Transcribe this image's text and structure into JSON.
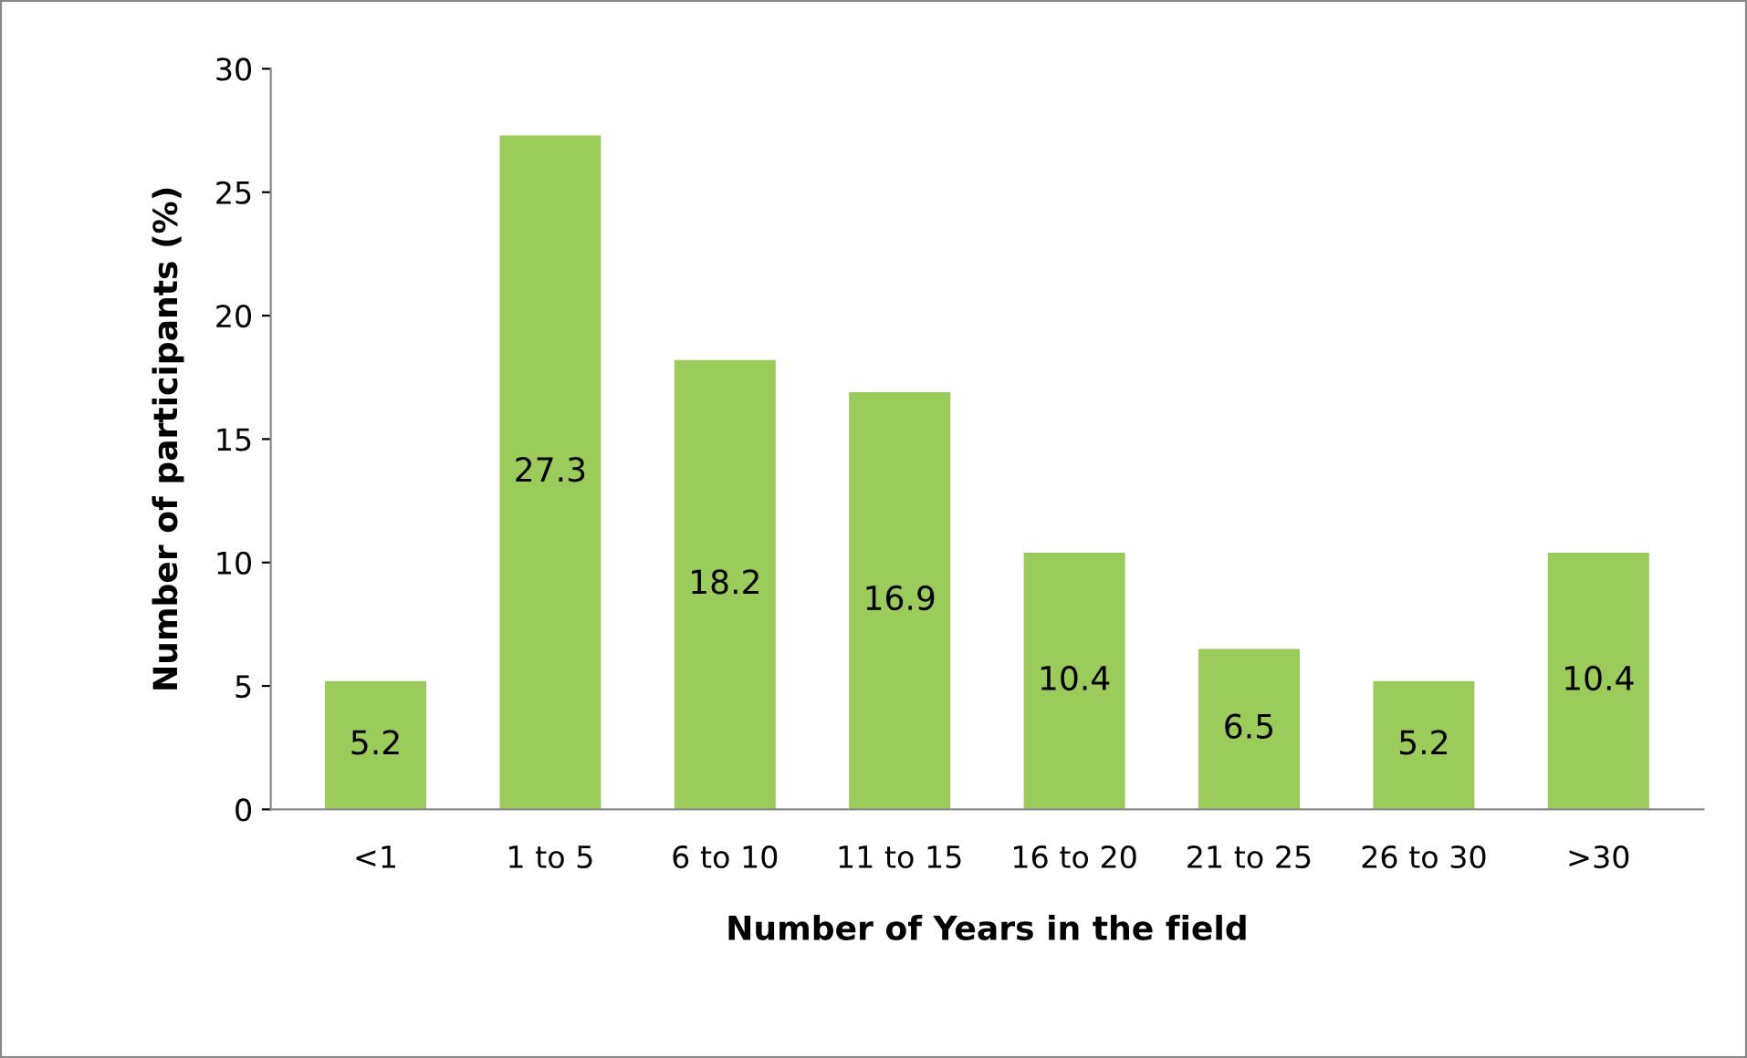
{
  "chart_data": {
    "type": "bar",
    "xlabel": "Number of Years in the field",
    "ylabel": "Number of participants (%)",
    "categories": [
      "<1",
      "1 to 5",
      "6 to 10",
      "11 to 15",
      "16 to 20",
      "21 to 25",
      "26 to 30",
      ">30"
    ],
    "values": [
      5.2,
      27.3,
      18.2,
      16.9,
      10.4,
      6.5,
      5.2,
      10.4
    ],
    "color": "#9bcb5b",
    "ylim": [
      0,
      30
    ],
    "yticks": [
      0,
      5,
      10,
      15,
      20,
      25,
      30
    ],
    "data_labels": true,
    "grid": false,
    "legend": false
  }
}
